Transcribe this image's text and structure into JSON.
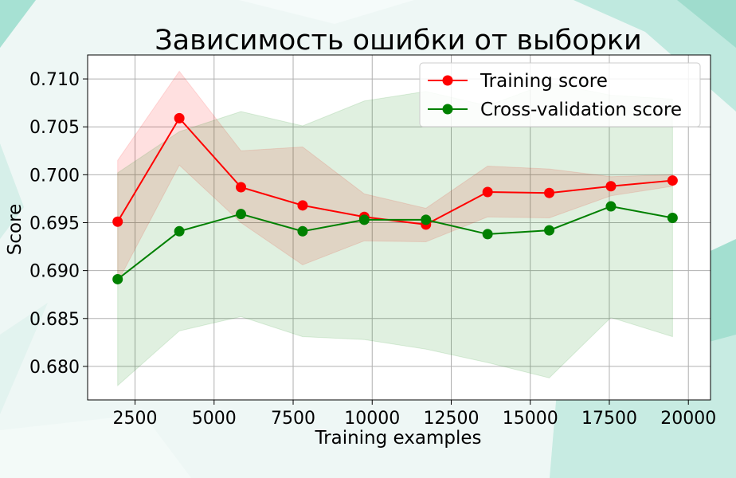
{
  "chart_data": {
    "type": "line",
    "title": "Зависимость ошибки от выборки",
    "xlabel": "Training examples",
    "ylabel": "Score",
    "xlim": [
      1000,
      20700
    ],
    "ylim": [
      0.6765,
      0.7125
    ],
    "xticks": [
      2500,
      5000,
      7500,
      10000,
      12500,
      15000,
      17500,
      20000
    ],
    "yticks": [
      0.68,
      0.685,
      0.69,
      0.695,
      0.7,
      0.705,
      0.71
    ],
    "grid": true,
    "legend_position": "top-right",
    "x": [
      1950,
      3900,
      5850,
      7800,
      9750,
      11700,
      13650,
      15600,
      17550,
      19500
    ],
    "series": [
      {
        "name": "Training score",
        "color": "#ff0000",
        "band_color": "#ff0000",
        "values": [
          0.6951,
          0.7059,
          0.6987,
          0.6968,
          0.6956,
          0.6948,
          0.6982,
          0.6981,
          0.6988,
          0.6994
        ],
        "band_lower": [
          0.6888,
          0.701,
          0.695,
          0.6906,
          0.6931,
          0.693,
          0.6956,
          0.6955,
          0.6978,
          0.6988
        ],
        "band_upper": [
          0.7015,
          0.7108,
          0.7025,
          0.7029,
          0.698,
          0.6965,
          0.7009,
          0.7006,
          0.6998,
          0.7
        ]
      },
      {
        "name": "Cross-validation score",
        "color": "#008000",
        "band_color": "#008000",
        "values": [
          0.6891,
          0.6941,
          0.6959,
          0.6941,
          0.6953,
          0.6953,
          0.6938,
          0.6942,
          0.6967,
          0.6955
        ],
        "band_lower": [
          0.678,
          0.6837,
          0.6852,
          0.6831,
          0.6828,
          0.6818,
          0.6804,
          0.6788,
          0.6851,
          0.6831
        ],
        "band_upper": [
          0.7002,
          0.7045,
          0.7066,
          0.7051,
          0.7077,
          0.7087,
          0.7072,
          0.7096,
          0.7083,
          0.7079
        ]
      }
    ]
  }
}
